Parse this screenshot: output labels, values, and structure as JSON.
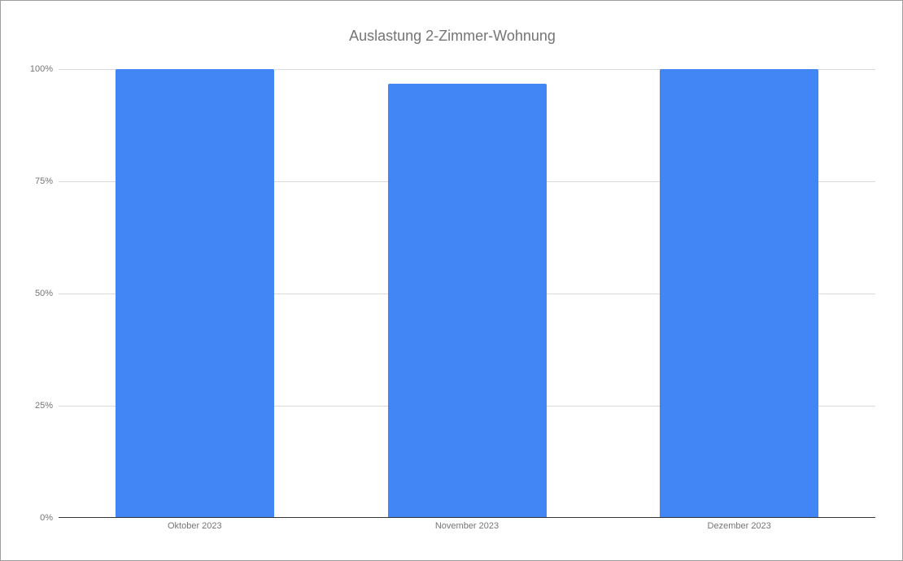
{
  "chart_data": {
    "type": "bar",
    "title": "Auslastung 2-Zimmer-Wohnung",
    "xlabel": "",
    "ylabel": "",
    "categories": [
      "Oktober 2023",
      "November 2023",
      "Dezember 2023"
    ],
    "values": [
      1.0,
      0.967,
      1.0
    ],
    "value_format": "percent",
    "ylim": [
      0,
      1
    ],
    "yticks": [
      "0%",
      "25%",
      "50%",
      "75%",
      "100%"
    ],
    "grid": true,
    "legend": "none",
    "bar_color": "#4285f4"
  }
}
